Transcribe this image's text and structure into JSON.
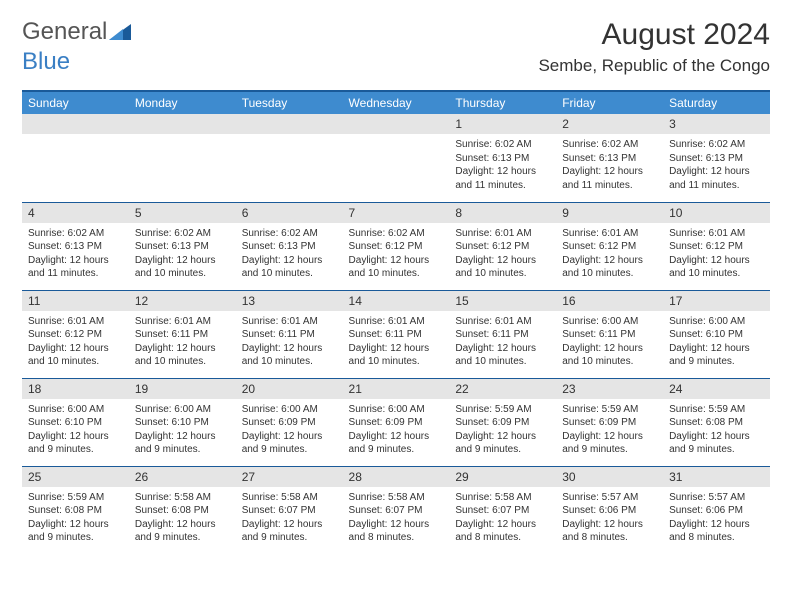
{
  "logo": {
    "word1": "General",
    "word2": "Blue",
    "accent_color": "#3a7fc4"
  },
  "title": "August 2024",
  "location": "Sembe, Republic of the Congo",
  "header_bg": "#3e8bcf",
  "border_color": "#1a5a99",
  "day_bg": "#e5e5e5",
  "weekdays": [
    "Sunday",
    "Monday",
    "Tuesday",
    "Wednesday",
    "Thursday",
    "Friday",
    "Saturday"
  ],
  "weeks": [
    [
      null,
      null,
      null,
      null,
      {
        "n": "1",
        "sr": "6:02 AM",
        "ss": "6:13 PM",
        "dl": "12 hours and 11 minutes."
      },
      {
        "n": "2",
        "sr": "6:02 AM",
        "ss": "6:13 PM",
        "dl": "12 hours and 11 minutes."
      },
      {
        "n": "3",
        "sr": "6:02 AM",
        "ss": "6:13 PM",
        "dl": "12 hours and 11 minutes."
      }
    ],
    [
      {
        "n": "4",
        "sr": "6:02 AM",
        "ss": "6:13 PM",
        "dl": "12 hours and 11 minutes."
      },
      {
        "n": "5",
        "sr": "6:02 AM",
        "ss": "6:13 PM",
        "dl": "12 hours and 10 minutes."
      },
      {
        "n": "6",
        "sr": "6:02 AM",
        "ss": "6:13 PM",
        "dl": "12 hours and 10 minutes."
      },
      {
        "n": "7",
        "sr": "6:02 AM",
        "ss": "6:12 PM",
        "dl": "12 hours and 10 minutes."
      },
      {
        "n": "8",
        "sr": "6:01 AM",
        "ss": "6:12 PM",
        "dl": "12 hours and 10 minutes."
      },
      {
        "n": "9",
        "sr": "6:01 AM",
        "ss": "6:12 PM",
        "dl": "12 hours and 10 minutes."
      },
      {
        "n": "10",
        "sr": "6:01 AM",
        "ss": "6:12 PM",
        "dl": "12 hours and 10 minutes."
      }
    ],
    [
      {
        "n": "11",
        "sr": "6:01 AM",
        "ss": "6:12 PM",
        "dl": "12 hours and 10 minutes."
      },
      {
        "n": "12",
        "sr": "6:01 AM",
        "ss": "6:11 PM",
        "dl": "12 hours and 10 minutes."
      },
      {
        "n": "13",
        "sr": "6:01 AM",
        "ss": "6:11 PM",
        "dl": "12 hours and 10 minutes."
      },
      {
        "n": "14",
        "sr": "6:01 AM",
        "ss": "6:11 PM",
        "dl": "12 hours and 10 minutes."
      },
      {
        "n": "15",
        "sr": "6:01 AM",
        "ss": "6:11 PM",
        "dl": "12 hours and 10 minutes."
      },
      {
        "n": "16",
        "sr": "6:00 AM",
        "ss": "6:11 PM",
        "dl": "12 hours and 10 minutes."
      },
      {
        "n": "17",
        "sr": "6:00 AM",
        "ss": "6:10 PM",
        "dl": "12 hours and 9 minutes."
      }
    ],
    [
      {
        "n": "18",
        "sr": "6:00 AM",
        "ss": "6:10 PM",
        "dl": "12 hours and 9 minutes."
      },
      {
        "n": "19",
        "sr": "6:00 AM",
        "ss": "6:10 PM",
        "dl": "12 hours and 9 minutes."
      },
      {
        "n": "20",
        "sr": "6:00 AM",
        "ss": "6:09 PM",
        "dl": "12 hours and 9 minutes."
      },
      {
        "n": "21",
        "sr": "6:00 AM",
        "ss": "6:09 PM",
        "dl": "12 hours and 9 minutes."
      },
      {
        "n": "22",
        "sr": "5:59 AM",
        "ss": "6:09 PM",
        "dl": "12 hours and 9 minutes."
      },
      {
        "n": "23",
        "sr": "5:59 AM",
        "ss": "6:09 PM",
        "dl": "12 hours and 9 minutes."
      },
      {
        "n": "24",
        "sr": "5:59 AM",
        "ss": "6:08 PM",
        "dl": "12 hours and 9 minutes."
      }
    ],
    [
      {
        "n": "25",
        "sr": "5:59 AM",
        "ss": "6:08 PM",
        "dl": "12 hours and 9 minutes."
      },
      {
        "n": "26",
        "sr": "5:58 AM",
        "ss": "6:08 PM",
        "dl": "12 hours and 9 minutes."
      },
      {
        "n": "27",
        "sr": "5:58 AM",
        "ss": "6:07 PM",
        "dl": "12 hours and 9 minutes."
      },
      {
        "n": "28",
        "sr": "5:58 AM",
        "ss": "6:07 PM",
        "dl": "12 hours and 8 minutes."
      },
      {
        "n": "29",
        "sr": "5:58 AM",
        "ss": "6:07 PM",
        "dl": "12 hours and 8 minutes."
      },
      {
        "n": "30",
        "sr": "5:57 AM",
        "ss": "6:06 PM",
        "dl": "12 hours and 8 minutes."
      },
      {
        "n": "31",
        "sr": "5:57 AM",
        "ss": "6:06 PM",
        "dl": "12 hours and 8 minutes."
      }
    ]
  ],
  "labels": {
    "sunrise": "Sunrise: ",
    "sunset": "Sunset: ",
    "daylight": "Daylight: "
  }
}
